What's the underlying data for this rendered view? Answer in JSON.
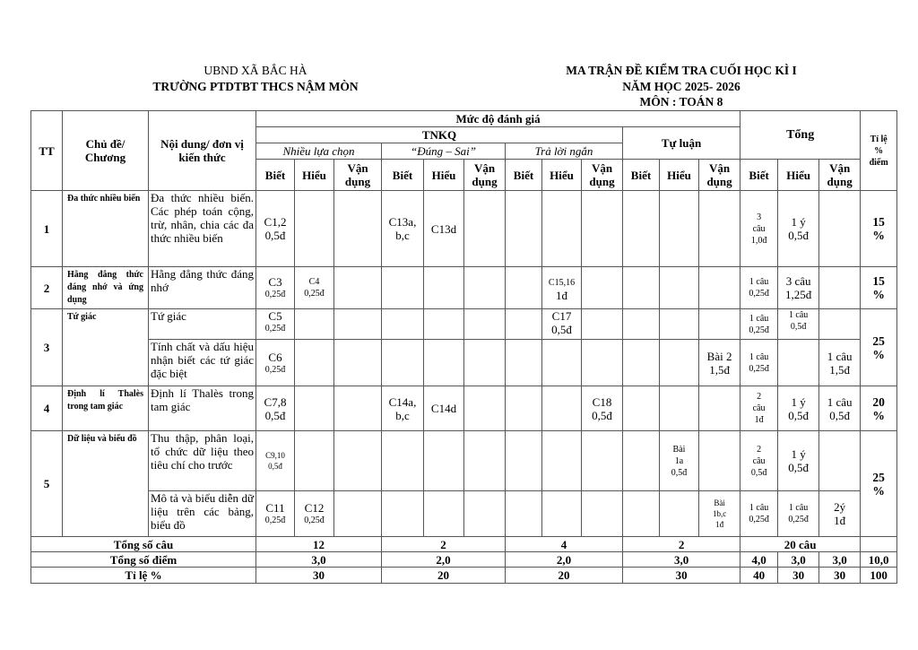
{
  "header": {
    "left_line1": "UBND XÃ BẮC HÀ",
    "left_line2": "TRƯỜNG PTDTBT THCS NẬM MÒN",
    "right_line1": "MA TRẬN ĐỀ KIỂM TRA CUỐI HỌC KÌ I",
    "right_line2": "NĂM HỌC 2025- 2026",
    "right_line3": "MÔN : TOÁN 8"
  },
  "thead": {
    "tt": "TT",
    "chude": "Chủ đề/\nChương",
    "noidung": "Nội dung/ đơn vị\nkiến thức",
    "mucdo": "Mức độ đánh giá",
    "tnkq": "TNKQ",
    "tuluan": "Tự luận",
    "tong": "Tổng",
    "tile": "Tỉ lệ\n%\nđiểm",
    "nlc": "Nhiều lựa chọn",
    "dungsai": "“Đúng – Sai”",
    "tln": "Trả lời ngắn",
    "biet": "Biết",
    "hieu": "Hiểu",
    "vandung": "Vận\ndụng"
  },
  "rows": [
    [
      {
        "t": "1",
        "c": "b",
        "rs": 1
      },
      {
        "t": "Đa thức nhiều biến",
        "c": "topic"
      },
      {
        "t": "Đa thức nhiều biến. Các phép toán cộng, trừ, nhân, chia các đa thức nhiều biến",
        "c": "jus"
      },
      {
        "t": "C1,2\n0,5đ"
      },
      {
        "t": ""
      },
      {
        "t": ""
      },
      {
        "t": "C13a,\nb,c"
      },
      {
        "t": "C13d"
      },
      {
        "t": ""
      },
      {
        "t": ""
      },
      {
        "t": ""
      },
      {
        "t": ""
      },
      {
        "t": ""
      },
      {
        "t": ""
      },
      {
        "t": ""
      },
      {
        "t": "3\ncâu\n1,0đ",
        "c": "sm"
      },
      {
        "t": "1 ý\n0,5đ"
      },
      {
        "t": ""
      },
      {
        "t": "15\n%",
        "c": "tile"
      }
    ],
    [
      {
        "t": "2",
        "c": "b"
      },
      {
        "t": "Hằng đẳng thức đáng nhớ và ứng dụng",
        "c": "topic"
      },
      {
        "t": "Hằng đẳng thức đáng nhớ",
        "c": "jus"
      },
      {
        "t": "C3",
        "s": "0,25đ"
      },
      {
        "t": "C4\n0,25đ",
        "c": "sm"
      },
      {
        "t": ""
      },
      {
        "t": ""
      },
      {
        "t": ""
      },
      {
        "t": ""
      },
      {
        "t": ""
      },
      {
        "t": "C15,16",
        "s2": "1đ"
      },
      {
        "t": ""
      },
      {
        "t": ""
      },
      {
        "t": ""
      },
      {
        "t": ""
      },
      {
        "t": "1 câu\n0,25đ",
        "c": "sm"
      },
      {
        "t": "3 câu\n1,25đ"
      },
      {
        "t": ""
      },
      {
        "t": "15\n%",
        "c": "tile"
      }
    ],
    [
      {
        "t": "3",
        "c": "b",
        "rs": 2
      },
      {
        "t": "Tứ giác",
        "c": "topic",
        "rs": 2
      },
      {
        "t": "Tứ giác",
        "c": "jus"
      },
      {
        "t": "C5",
        "s": "0,25đ",
        "c": "top"
      },
      {
        "t": ""
      },
      {
        "t": ""
      },
      {
        "t": ""
      },
      {
        "t": ""
      },
      {
        "t": ""
      },
      {
        "t": ""
      },
      {
        "t": "C17\n0,5đ",
        "c": "top"
      },
      {
        "t": ""
      },
      {
        "t": ""
      },
      {
        "t": ""
      },
      {
        "t": ""
      },
      {
        "t": "1 câu\n0,25đ",
        "c": "sm"
      },
      {
        "t": "1 câu\n0,5đ",
        "c": "sm top"
      },
      {
        "t": ""
      },
      {
        "t": "25\n%",
        "c": "tile",
        "rs": 2
      }
    ],
    [
      {
        "t": "Tính chất và dấu hiệu nhận biết các tứ giác đặc biệt",
        "c": "jus"
      },
      {
        "t": "C6",
        "s": "0,25đ"
      },
      {
        "t": ""
      },
      {
        "t": ""
      },
      {
        "t": ""
      },
      {
        "t": ""
      },
      {
        "t": ""
      },
      {
        "t": ""
      },
      {
        "t": ""
      },
      {
        "t": ""
      },
      {
        "t": ""
      },
      {
        "t": ""
      },
      {
        "t": "Bài 2\n1,5đ"
      },
      {
        "t": "1 câu\n0,25đ",
        "c": "sm"
      },
      {
        "t": ""
      },
      {
        "t": "1 câu\n1,5đ"
      }
    ],
    [
      {
        "t": "4",
        "c": "b"
      },
      {
        "t": "Định lí Thalès trong tam giác",
        "c": "topic"
      },
      {
        "t": "Định lí Thalès trong tam giác",
        "c": "jus"
      },
      {
        "t": "C7,8\n0,5đ"
      },
      {
        "t": ""
      },
      {
        "t": ""
      },
      {
        "t": "C14a,\nb,c"
      },
      {
        "t": "C14d"
      },
      {
        "t": ""
      },
      {
        "t": ""
      },
      {
        "t": ""
      },
      {
        "t": "C18\n0,5đ"
      },
      {
        "t": ""
      },
      {
        "t": ""
      },
      {
        "t": ""
      },
      {
        "t": "2\ncâu\n1đ",
        "c": "sm"
      },
      {
        "t": "1 ý\n0,5đ"
      },
      {
        "t": "1 câu\n0,5đ"
      },
      {
        "t": "20\n%",
        "c": "tile"
      }
    ],
    [
      {
        "t": "5",
        "c": "b",
        "rs": 2
      },
      {
        "t": "Dữ liệu và biểu đồ",
        "c": "topic",
        "rs": 2
      },
      {
        "t": "Thu thập, phân loại, tổ chức dữ liệu theo tiêu chí cho trước",
        "c": "jus"
      },
      {
        "t": "C9,10\n0,5đ",
        "c": "xs"
      },
      {
        "t": ""
      },
      {
        "t": ""
      },
      {
        "t": ""
      },
      {
        "t": ""
      },
      {
        "t": ""
      },
      {
        "t": ""
      },
      {
        "t": ""
      },
      {
        "t": ""
      },
      {
        "t": ""
      },
      {
        "t": "Bài\n1a\n0,5đ",
        "c": "sm"
      },
      {
        "t": ""
      },
      {
        "t": "2\ncâu\n0,5đ",
        "c": "sm"
      },
      {
        "t": "1 ý\n0,5đ"
      },
      {
        "t": ""
      },
      {
        "t": "25\n%",
        "c": "tile",
        "rs": 2
      }
    ],
    [
      {
        "t": "Mô tả và biểu diễn dữ liệu trên các bảng, biểu đồ",
        "c": "jus"
      },
      {
        "t": "C11",
        "s": "0,25đ"
      },
      {
        "t": "C12",
        "s": "0,25đ"
      },
      {
        "t": ""
      },
      {
        "t": ""
      },
      {
        "t": ""
      },
      {
        "t": ""
      },
      {
        "t": ""
      },
      {
        "t": ""
      },
      {
        "t": ""
      },
      {
        "t": ""
      },
      {
        "t": ""
      },
      {
        "t": "Bài\n1b,c\n1đ",
        "c": "xs"
      },
      {
        "t": "1 câu\n0,25đ",
        "c": "sm"
      },
      {
        "t": "1 câu\n0,25đ",
        "c": "sm"
      },
      {
        "t": "2ý\n1đ"
      }
    ]
  ],
  "footer": [
    [
      {
        "t": "Tổng số câu",
        "cs": 3
      },
      {
        "t": "12",
        "cs": 3
      },
      {
        "t": "2",
        "cs": 3
      },
      {
        "t": "4",
        "cs": 3
      },
      {
        "t": "2",
        "cs": 3
      },
      {
        "t": "20 câu",
        "cs": 3
      },
      {
        "t": ""
      }
    ],
    [
      {
        "t": "Tổng số điểm",
        "cs": 3
      },
      {
        "t": "3,0",
        "cs": 3
      },
      {
        "t": "2,0",
        "cs": 3
      },
      {
        "t": "2,0",
        "cs": 3
      },
      {
        "t": "3,0",
        "cs": 3
      },
      {
        "t": "4,0"
      },
      {
        "t": "3,0"
      },
      {
        "t": "3,0"
      },
      {
        "t": "10,0"
      }
    ],
    [
      {
        "t": "Tỉ lệ %",
        "cs": 3
      },
      {
        "t": "30",
        "cs": 3
      },
      {
        "t": "20",
        "cs": 3
      },
      {
        "t": "20",
        "cs": 3
      },
      {
        "t": "30",
        "cs": 3
      },
      {
        "t": "40"
      },
      {
        "t": "30"
      },
      {
        "t": "30"
      },
      {
        "t": "100"
      }
    ]
  ]
}
